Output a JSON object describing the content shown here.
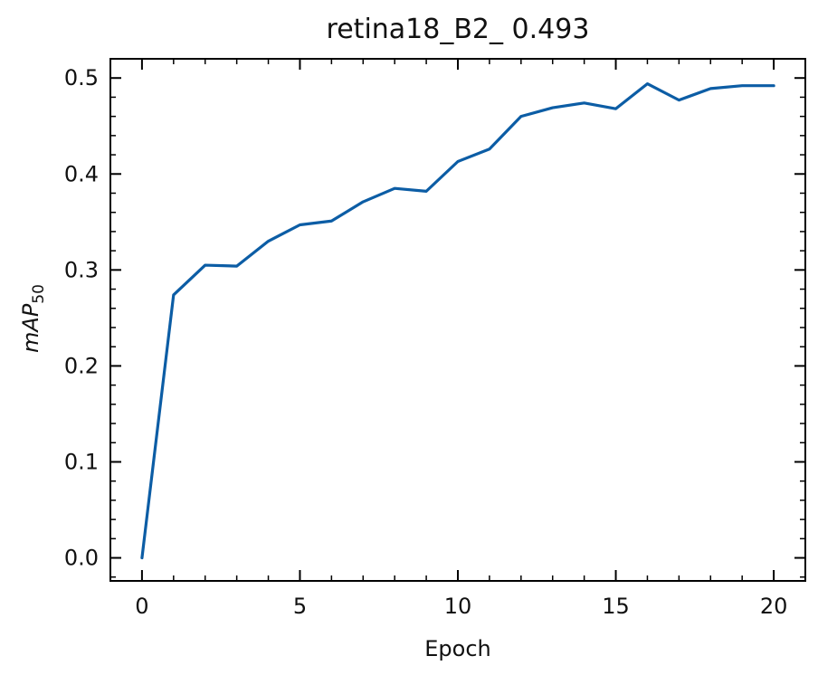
{
  "chart_data": {
    "type": "line",
    "title": "retina18_B2_ 0.493",
    "xlabel": "Epoch",
    "ylabel": {
      "main": "mAP",
      "subscript": "50"
    },
    "xlim": [
      -1,
      21
    ],
    "ylim": [
      -0.024,
      0.52
    ],
    "xticks": [
      0,
      5,
      10,
      15,
      20
    ],
    "yticks": [
      0.0,
      0.1,
      0.2,
      0.3,
      0.4,
      0.5
    ],
    "xtick_labels": [
      "0",
      "5",
      "10",
      "15",
      "20"
    ],
    "ytick_labels": [
      "0.0",
      "0.1",
      "0.2",
      "0.3",
      "0.4",
      "0.5"
    ],
    "grid": false,
    "series": [
      {
        "color": "#0c5da5",
        "x": [
          0,
          1,
          2,
          3,
          4,
          5,
          6,
          7,
          8,
          9,
          10,
          11,
          12,
          13,
          14,
          15,
          16,
          17,
          18,
          19,
          20
        ],
        "y": [
          0.0,
          0.274,
          0.305,
          0.304,
          0.33,
          0.347,
          0.351,
          0.371,
          0.385,
          0.382,
          0.413,
          0.426,
          0.46,
          0.469,
          0.474,
          0.468,
          0.494,
          0.477,
          0.489,
          0.492,
          0.492
        ]
      }
    ]
  }
}
